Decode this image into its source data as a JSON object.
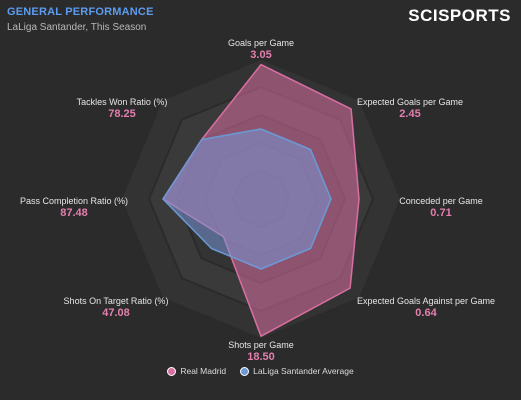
{
  "header": {
    "title": "GENERAL PERFORMANCE",
    "subtitle": "LaLiga Santander, This Season",
    "logo": "SCISPORTS"
  },
  "legend": {
    "items": [
      {
        "label": "Real Madrid",
        "color": "#d96fa1"
      },
      {
        "label": "LaLiga Santander Average",
        "color": "#6a9ad6"
      }
    ]
  },
  "chart_data": {
    "type": "radar",
    "axes": [
      {
        "label": "Goals per Game",
        "value": "3.05"
      },
      {
        "label": "Expected Goals per Game",
        "value": "2.45"
      },
      {
        "label": "Conceded per Game",
        "value": "0.71"
      },
      {
        "label": "Expected Goals Against per Game",
        "value": "0.64"
      },
      {
        "label": "Shots per Game",
        "value": "18.50"
      },
      {
        "label": "Shots On Target Ratio (%)",
        "value": "47.08"
      },
      {
        "label": "Pass Completion Ratio (%)",
        "value": "87.48"
      },
      {
        "label": "Tackles Won Ratio (%)",
        "value": "78.25"
      }
    ],
    "rings": 5,
    "series": [
      {
        "name": "Real Madrid",
        "color": "#d96fa1",
        "values": [
          0.96,
          0.91,
          0.7,
          0.9,
          0.98,
          0.38,
          0.7,
          0.6
        ]
      },
      {
        "name": "LaLiga Santander Average",
        "color": "#6a9ad6",
        "values": [
          0.5,
          0.5,
          0.5,
          0.5,
          0.5,
          0.5,
          0.7,
          0.6
        ]
      }
    ]
  }
}
